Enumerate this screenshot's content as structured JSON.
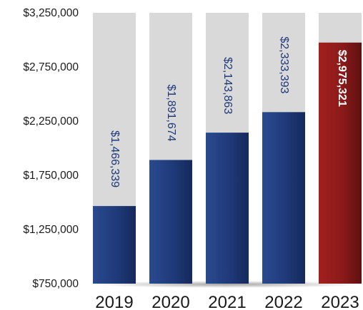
{
  "chart_data": {
    "type": "bar",
    "title": "",
    "xlabel": "",
    "ylabel": "",
    "categories": [
      "2019",
      "2020",
      "2021",
      "2022",
      "2023"
    ],
    "values": [
      1466339,
      1891674,
      2143863,
      2333393,
      2975321
    ],
    "data_labels": [
      "$1,466,339",
      "$1,891,674",
      "$2,143,863",
      "$2,333,393",
      "$2,975,321"
    ],
    "ylim": [
      750000,
      3250000
    ],
    "yticks": [
      750000,
      1250000,
      1750000,
      2250000,
      2750000,
      3250000
    ],
    "ytick_labels": [
      "$750,000",
      "$1,250,000",
      "$1,750,000",
      "$2,250,000",
      "$2,750,000",
      "$3,250,000"
    ],
    "grid": false,
    "legend": "none",
    "highlight_index": 4,
    "colors": {
      "bar": "#1f3a7a",
      "highlight": "#8b1a1a",
      "track": "#d9d9d9",
      "label": "#1f3a7a",
      "highlight_label": "#ffffff"
    }
  }
}
